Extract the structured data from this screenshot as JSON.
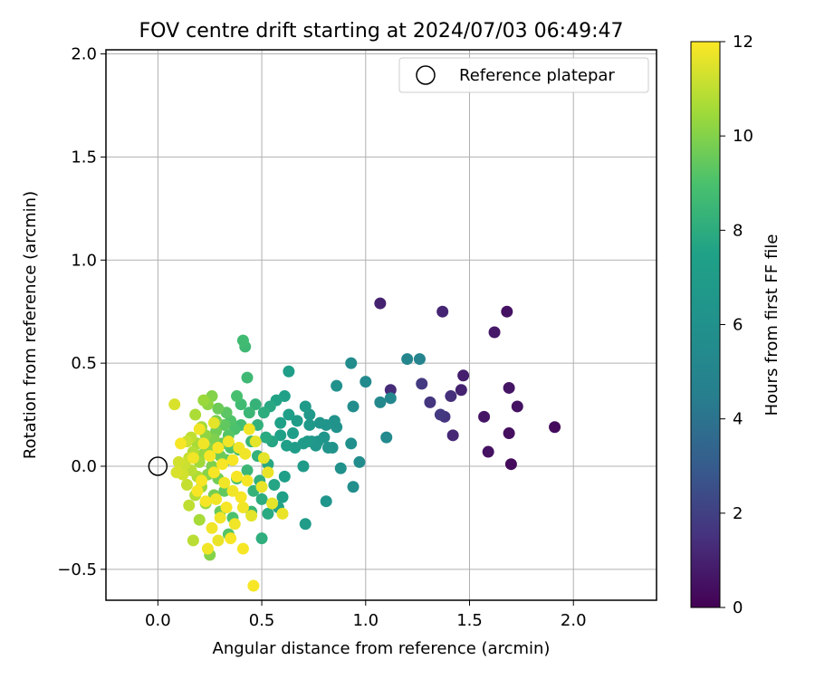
{
  "chart_data": {
    "type": "scatter",
    "title": "FOV centre drift starting at 2024/07/03 06:49:47",
    "xlabel": "Angular distance from reference (arcmin)",
    "ylabel": "Rotation from reference (arcmin)",
    "xlim": [
      -0.25,
      2.4
    ],
    "ylim": [
      -0.65,
      2.02
    ],
    "xticks": [
      0.0,
      0.5,
      1.0,
      1.5,
      2.0
    ],
    "xtick_labels": [
      "0.0",
      "0.5",
      "1.0",
      "1.5",
      "2.0"
    ],
    "yticks": [
      -0.5,
      0.0,
      0.5,
      1.0,
      1.5,
      2.0
    ],
    "ytick_labels": [
      "−0.5",
      "0.0",
      "0.5",
      "1.0",
      "1.5",
      "2.0"
    ],
    "grid": true,
    "legend": {
      "placement": "top-right",
      "label": "Reference platepar"
    },
    "reference_point": {
      "x": 0.0,
      "y": 0.0
    },
    "colorbar": {
      "label": "Hours from first FF file",
      "range": [
        0,
        12
      ],
      "ticks": [
        "0",
        "2",
        "4",
        "6",
        "8",
        "10",
        "12"
      ],
      "colormap": "viridis"
    },
    "points": [
      [
        1.91,
        0.19,
        0.3
      ],
      [
        1.73,
        0.29,
        0.5
      ],
      [
        1.69,
        0.38,
        0.6
      ],
      [
        1.69,
        0.16,
        0.4
      ],
      [
        1.7,
        0.01,
        0.3
      ],
      [
        1.68,
        0.75,
        0.5
      ],
      [
        1.62,
        0.65,
        0.7
      ],
      [
        1.57,
        0.24,
        0.6
      ],
      [
        1.59,
        0.07,
        0.5
      ],
      [
        1.47,
        0.44,
        0.9
      ],
      [
        1.46,
        0.37,
        1.0
      ],
      [
        1.42,
        0.15,
        1.2
      ],
      [
        1.41,
        0.34,
        1.4
      ],
      [
        1.38,
        0.24,
        1.6
      ],
      [
        1.36,
        0.25,
        1.8
      ],
      [
        1.37,
        0.75,
        1.1
      ],
      [
        1.31,
        0.31,
        1.6
      ],
      [
        1.27,
        0.4,
        1.8
      ],
      [
        1.07,
        0.79,
        1.0
      ],
      [
        1.12,
        0.37,
        1.3
      ],
      [
        1.26,
        0.52,
        4.9
      ],
      [
        1.2,
        0.52,
        5.0
      ],
      [
        1.12,
        0.33,
        5.2
      ],
      [
        1.07,
        0.31,
        5.3
      ],
      [
        1.1,
        0.14,
        5.4
      ],
      [
        1.0,
        0.41,
        5.4
      ],
      [
        0.93,
        0.5,
        5.6
      ],
      [
        0.94,
        0.29,
        5.7
      ],
      [
        0.97,
        0.02,
        5.7
      ],
      [
        0.94,
        -0.1,
        5.8
      ],
      [
        0.93,
        0.11,
        5.9
      ],
      [
        0.88,
        -0.01,
        6.0
      ],
      [
        0.86,
        0.39,
        6.0
      ],
      [
        0.86,
        0.19,
        6.1
      ],
      [
        0.85,
        0.22,
        6.2
      ],
      [
        0.84,
        0.09,
        6.2
      ],
      [
        0.82,
        0.09,
        6.3
      ],
      [
        0.81,
        0.2,
        6.3
      ],
      [
        0.8,
        0.14,
        6.4
      ],
      [
        0.81,
        -0.17,
        6.4
      ],
      [
        0.78,
        0.21,
        6.5
      ],
      [
        0.77,
        0.12,
        6.5
      ],
      [
        0.76,
        0.1,
        6.6
      ],
      [
        0.74,
        0.12,
        6.6
      ],
      [
        0.73,
        0.25,
        6.7
      ],
      [
        0.73,
        0.2,
        6.7
      ],
      [
        0.72,
        0.12,
        6.8
      ],
      [
        0.71,
        0.29,
        6.8
      ],
      [
        0.7,
        0.11,
        6.9
      ],
      [
        0.7,
        0.0,
        6.9
      ],
      [
        0.71,
        -0.28,
        7.0
      ],
      [
        0.67,
        0.22,
        7.0
      ],
      [
        0.66,
        0.09,
        7.1
      ],
      [
        0.65,
        0.16,
        7.1
      ],
      [
        0.63,
        0.46,
        7.2
      ],
      [
        0.63,
        0.25,
        7.2
      ],
      [
        0.62,
        0.1,
        7.3
      ],
      [
        0.61,
        -0.05,
        7.3
      ],
      [
        0.61,
        0.34,
        7.4
      ],
      [
        0.6,
        -0.15,
        7.4
      ],
      [
        0.59,
        0.21,
        7.5
      ],
      [
        0.59,
        0.15,
        7.5
      ],
      [
        0.58,
        -0.2,
        7.6
      ],
      [
        0.57,
        0.32,
        7.6
      ],
      [
        0.56,
        -0.09,
        7.7
      ],
      [
        0.55,
        0.12,
        7.7
      ],
      [
        0.54,
        0.29,
        7.8
      ],
      [
        0.53,
        0.01,
        7.8
      ],
      [
        0.53,
        -0.23,
        7.9
      ],
      [
        0.52,
        0.14,
        7.9
      ],
      [
        0.51,
        0.26,
        8.0
      ],
      [
        0.5,
        -0.16,
        8.0
      ],
      [
        0.5,
        -0.35,
        8.1
      ],
      [
        0.49,
        -0.07,
        8.1
      ],
      [
        0.48,
        0.2,
        8.2
      ],
      [
        0.48,
        0.05,
        8.2
      ],
      [
        0.47,
        0.3,
        8.3
      ],
      [
        0.46,
        -0.12,
        8.3
      ],
      [
        0.45,
        0.12,
        8.4
      ],
      [
        0.45,
        -0.22,
        8.4
      ],
      [
        0.44,
        0.26,
        8.5
      ],
      [
        0.43,
        -0.02,
        8.5
      ],
      [
        0.43,
        0.43,
        8.6
      ],
      [
        0.42,
        0.58,
        8.6
      ],
      [
        0.41,
        0.61,
        8.7
      ],
      [
        0.4,
        0.3,
        8.7
      ],
      [
        0.4,
        0.2,
        8.8
      ],
      [
        0.39,
        0.08,
        8.8
      ],
      [
        0.38,
        -0.06,
        8.9
      ],
      [
        0.38,
        0.34,
        8.9
      ],
      [
        0.37,
        0.18,
        9.0
      ],
      [
        0.36,
        -0.25,
        9.0
      ],
      [
        0.35,
        0.22,
        9.1
      ],
      [
        0.35,
        0.09,
        9.1
      ],
      [
        0.34,
        -0.33,
        9.2
      ],
      [
        0.34,
        0.15,
        9.2
      ],
      [
        0.33,
        0.26,
        9.3
      ],
      [
        0.33,
        0.03,
        9.3
      ],
      [
        0.32,
        -0.12,
        9.4
      ],
      [
        0.32,
        0.2,
        9.4
      ],
      [
        0.31,
        0.11,
        9.5
      ],
      [
        0.3,
        -0.22,
        9.5
      ],
      [
        0.3,
        0.05,
        9.6
      ],
      [
        0.29,
        0.28,
        9.6
      ],
      [
        0.29,
        -0.06,
        9.7
      ],
      [
        0.28,
        0.17,
        9.7
      ],
      [
        0.28,
        0.22,
        9.8
      ],
      [
        0.27,
        -0.14,
        9.8
      ],
      [
        0.27,
        0.13,
        9.9
      ],
      [
        0.26,
        0.0,
        9.9
      ],
      [
        0.26,
        0.34,
        10.0
      ],
      [
        0.25,
        -0.43,
        10.0
      ],
      [
        0.25,
        0.08,
        10.1
      ],
      [
        0.24,
        -0.04,
        10.1
      ],
      [
        0.24,
        0.3,
        10.2
      ],
      [
        0.23,
        0.15,
        10.2
      ],
      [
        0.23,
        -0.18,
        10.3
      ],
      [
        0.22,
        0.06,
        10.3
      ],
      [
        0.22,
        0.32,
        10.4
      ],
      [
        0.21,
        -0.1,
        10.4
      ],
      [
        0.21,
        0.19,
        10.5
      ],
      [
        0.2,
        0.02,
        10.5
      ],
      [
        0.2,
        -0.26,
        10.6
      ],
      [
        0.19,
        0.11,
        10.6
      ],
      [
        0.19,
        -0.05,
        10.7
      ],
      [
        0.18,
        0.25,
        10.7
      ],
      [
        0.18,
        -0.14,
        10.8
      ],
      [
        0.17,
        0.07,
        10.8
      ],
      [
        0.17,
        -0.36,
        10.9
      ],
      [
        0.16,
        -0.02,
        10.9
      ],
      [
        0.16,
        0.14,
        11.0
      ],
      [
        0.15,
        -0.19,
        11.0
      ],
      [
        0.15,
        0.04,
        11.1
      ],
      [
        0.14,
        -0.09,
        11.1
      ],
      [
        0.14,
        0.12,
        11.2
      ],
      [
        0.13,
        0.01,
        11.2
      ],
      [
        0.12,
        -0.04,
        11.3
      ],
      [
        0.1,
        0.02,
        11.3
      ],
      [
        0.09,
        -0.03,
        11.4
      ],
      [
        0.08,
        0.3,
        11.4
      ],
      [
        0.46,
        -0.58,
        11.9
      ],
      [
        0.44,
        0.18,
        11.8
      ],
      [
        0.43,
        -0.07,
        11.9
      ],
      [
        0.42,
        0.06,
        11.8
      ],
      [
        0.41,
        -0.4,
        11.9
      ],
      [
        0.41,
        -0.2,
        11.8
      ],
      [
        0.4,
        -0.15,
        11.9
      ],
      [
        0.39,
        0.09,
        11.8
      ],
      [
        0.38,
        -0.05,
        11.9
      ],
      [
        0.37,
        -0.28,
        11.8
      ],
      [
        0.36,
        0.03,
        11.9
      ],
      [
        0.36,
        -0.12,
        11.8
      ],
      [
        0.35,
        -0.35,
        11.9
      ],
      [
        0.34,
        0.12,
        11.8
      ],
      [
        0.33,
        -0.2,
        11.9
      ],
      [
        0.32,
        -0.08,
        11.8
      ],
      [
        0.31,
        0.01,
        11.9
      ],
      [
        0.3,
        -0.25,
        11.8
      ],
      [
        0.29,
        0.09,
        11.9
      ],
      [
        0.28,
        -0.16,
        11.8
      ],
      [
        0.27,
        -0.03,
        11.9
      ],
      [
        0.26,
        -0.3,
        11.8
      ],
      [
        0.25,
        0.05,
        11.9
      ],
      [
        0.24,
        -0.4,
        11.8
      ],
      [
        0.23,
        -0.17,
        11.9
      ],
      [
        0.22,
        0.11,
        11.8
      ],
      [
        0.21,
        -0.07,
        11.9
      ],
      [
        0.2,
        0.18,
        11.8
      ],
      [
        0.19,
        -0.12,
        11.9
      ],
      [
        0.17,
        0.04,
        11.8
      ],
      [
        0.11,
        0.11,
        11.9
      ],
      [
        0.45,
        -0.24,
        11.6
      ],
      [
        0.47,
        0.12,
        11.6
      ],
      [
        0.6,
        -0.23,
        11.7
      ],
      [
        0.55,
        -0.18,
        11.6
      ],
      [
        0.53,
        -0.03,
        11.7
      ],
      [
        0.51,
        0.04,
        11.6
      ],
      [
        0.5,
        -0.1,
        11.7
      ],
      [
        0.29,
        -0.36,
        11.7
      ],
      [
        0.27,
        0.21,
        11.6
      ]
    ]
  }
}
